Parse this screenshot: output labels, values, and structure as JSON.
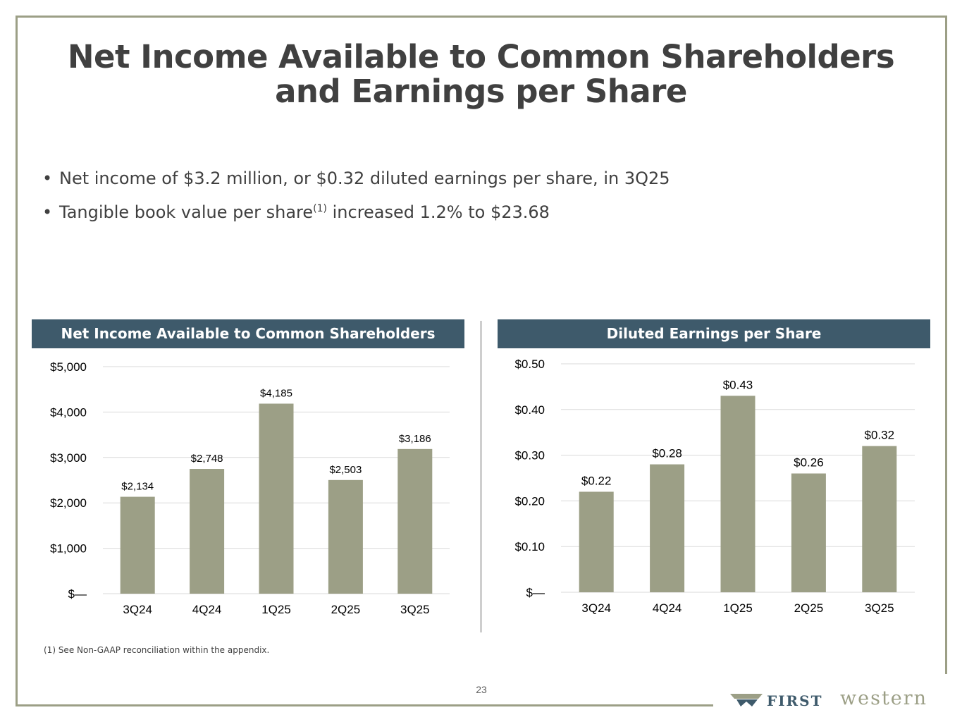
{
  "title": "Net Income Available to Common Shareholders and Earnings per Share",
  "bullets": [
    {
      "text": "Net income of $3.2 million, or $0.32 diluted earnings per share, in 3Q25"
    },
    {
      "text_before": "Tangible book value per share",
      "superscript": "(1)",
      "text_after": " increased 1.2% to $23.68"
    }
  ],
  "panels": {
    "left_header": "Net Income Available to Common Shareholders",
    "right_header": "Diluted Earnings per Share"
  },
  "footnote": "(1)  See Non-GAAP reconciliation within the appendix.",
  "page_number": "23",
  "logo": {
    "first": "FIRST",
    "western": "western"
  },
  "colors": {
    "bar": "#9c9f86",
    "header": "#3e5a6b",
    "frame": "#9c9f86",
    "grid": "#d9d9d9"
  },
  "chart_data": [
    {
      "type": "bar",
      "title": "Net Income Available to Common Shareholders",
      "categories": [
        "3Q24",
        "4Q24",
        "1Q25",
        "2Q25",
        "3Q25"
      ],
      "values": [
        2134,
        2748,
        4185,
        2503,
        3186
      ],
      "value_labels": [
        "$2,134",
        "$2,748",
        "$4,185",
        "$2,503",
        "$3,186"
      ],
      "ylim": [
        0,
        5000
      ],
      "yticks": [
        0,
        1000,
        2000,
        3000,
        4000,
        5000
      ],
      "ytick_labels": [
        "$—",
        "$1,000",
        "$2,000",
        "$3,000",
        "$4,000",
        "$5,000"
      ],
      "grid": true
    },
    {
      "type": "bar",
      "title": "Diluted Earnings per Share",
      "categories": [
        "3Q24",
        "4Q24",
        "1Q25",
        "2Q25",
        "3Q25"
      ],
      "values": [
        0.22,
        0.28,
        0.43,
        0.26,
        0.32
      ],
      "value_labels": [
        "$0.22",
        "$0.28",
        "$0.43",
        "$0.26",
        "$0.32"
      ],
      "ylim": [
        0,
        0.5
      ],
      "yticks": [
        0,
        0.1,
        0.2,
        0.3,
        0.4,
        0.5
      ],
      "ytick_labels": [
        "$—",
        "$0.10",
        "$0.20",
        "$0.30",
        "$0.40",
        "$0.50"
      ],
      "grid": true
    }
  ]
}
